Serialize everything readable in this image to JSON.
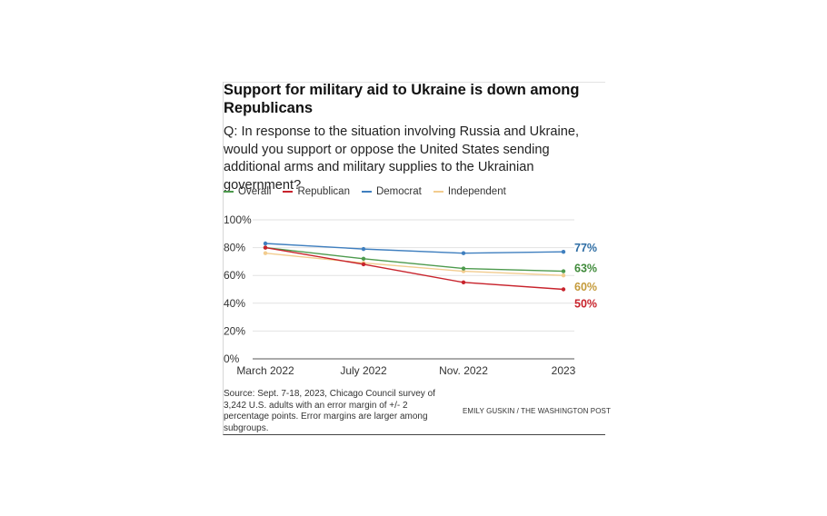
{
  "chart_data": {
    "type": "line",
    "title": "Support for military aid to Ukraine is down among Republicans",
    "subtitle": "Q: In response to the situation involving Russia and Ukraine, would you support or oppose the United States sending additional arms and military supplies to the Ukrainian government?",
    "xlabel": "",
    "ylabel": "",
    "categories": [
      "March 2022",
      "July 2022",
      "Nov. 2022",
      "2023"
    ],
    "ylim": [
      0,
      100
    ],
    "yticks": [
      0,
      20,
      40,
      60,
      80,
      100
    ],
    "ytick_labels": [
      "0%",
      "20%",
      "40%",
      "60%",
      "80%",
      "100%"
    ],
    "grid": true,
    "legend_position": "top-left",
    "series": [
      {
        "name": "Overall",
        "color": "#4d9a4d",
        "values": [
          80,
          72,
          65,
          63
        ],
        "end_label": "63%",
        "label_color": "#3f8a3a"
      },
      {
        "name": "Republican",
        "color": "#c8232c",
        "values": [
          80,
          68,
          55,
          50
        ],
        "end_label": "50%",
        "label_color": "#c8232c"
      },
      {
        "name": "Democrat",
        "color": "#3f7fbf",
        "values": [
          83,
          79,
          76,
          77
        ],
        "end_label": "77%",
        "label_color": "#2e6da4"
      },
      {
        "name": "Independent",
        "color": "#f2cc8f",
        "values": [
          76,
          69,
          63,
          60
        ],
        "end_label": "60%",
        "label_color": "#c49a3a"
      }
    ]
  },
  "source": "Source: Sept. 7-18, 2023, Chicago Council survey of 3,242 U.S. adults with an error margin of +/- 2 percentage points. Error margins are larger among subgroups.",
  "credit": "EMILY GUSKIN / THE WASHINGTON POST"
}
